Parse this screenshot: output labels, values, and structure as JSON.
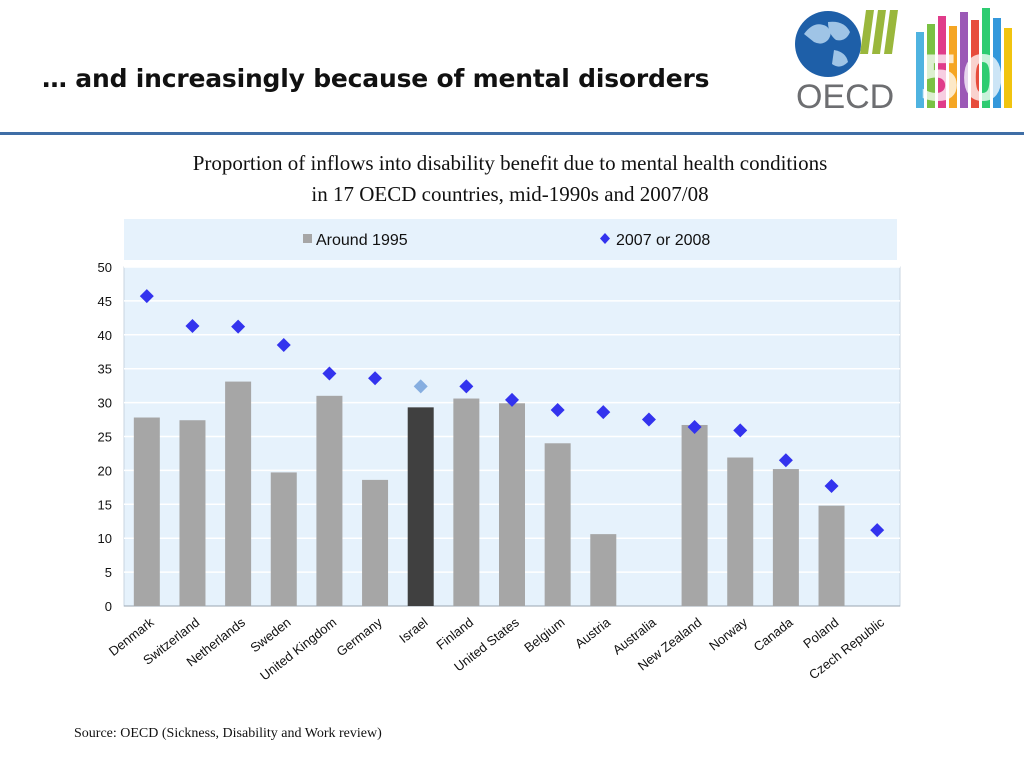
{
  "slide": {
    "title": "… and increasingly because of mental disorders",
    "logo_text": "OECD",
    "logo_number": "50"
  },
  "chart_data": {
    "type": "bar",
    "title": "Proportion of inflows into disability benefit due to mental health conditions",
    "subtitle": "in 17 OECD countries, mid-1990s and 2007/08",
    "categories": [
      "Denmark",
      "Switzerland",
      "Netherlands",
      "Sweden",
      "United Kingdom",
      "Germany",
      "Israel",
      "Finland",
      "United States",
      "Belgium",
      "Austria",
      "Australia",
      "New Zealand",
      "Norway",
      "Canada",
      "Poland",
      "Czech Republic"
    ],
    "series": [
      {
        "name": "Around 1995",
        "mark": "bar",
        "color": "#a6a6a6",
        "values": [
          27.8,
          27.4,
          33.1,
          19.7,
          31.0,
          18.6,
          29.3,
          30.6,
          29.9,
          24.0,
          10.6,
          null,
          26.7,
          21.9,
          20.2,
          14.8,
          null
        ]
      },
      {
        "name": "2007 or 2008",
        "mark": "diamond",
        "color": "#3333ee",
        "values": [
          45.7,
          41.3,
          41.2,
          38.5,
          34.3,
          33.6,
          32.4,
          32.4,
          30.4,
          28.9,
          28.6,
          27.5,
          26.4,
          25.9,
          21.5,
          17.7,
          11.2
        ]
      }
    ],
    "highlight": {
      "category": "Israel",
      "bar_color": "#404040",
      "marker_color": "#86aee0"
    },
    "ylim": [
      0,
      50
    ],
    "yticks": [
      0,
      5,
      10,
      15,
      20,
      25,
      30,
      35,
      40,
      45,
      50
    ],
    "grid": true,
    "legend_position": "top",
    "plot_background": "#e6f2fc"
  },
  "source": "Source: OECD (Sickness, Disability and Work review)"
}
